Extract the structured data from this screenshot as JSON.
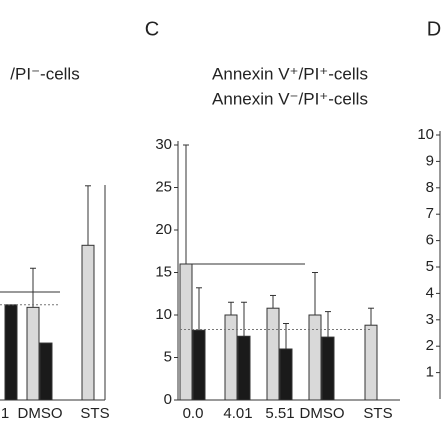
{
  "chart_data": [
    {
      "type": "bar",
      "title": "/PI⁻-cells",
      "categories": [
        "1",
        "DMSO",
        "STS"
      ],
      "series": [
        {
          "color": "#d9d9d9",
          "values": [
            null,
            10.9,
            18.2
          ],
          "errors": [
            null,
            4.6,
            7
          ]
        },
        {
          "color": "#1a1a1a",
          "values": [
            11.2,
            6.7,
            null
          ],
          "errors": [
            null,
            null,
            null
          ]
        }
      ],
      "ylim": [
        0,
        30
      ],
      "hlines": [
        {
          "value": 12.7,
          "style": "solid"
        },
        {
          "value": 11.2,
          "style": "dashed"
        }
      ]
    },
    {
      "type": "bar",
      "panel_label": "C",
      "categories": [
        "0.0",
        "4.01",
        "5.51",
        "DMSO",
        "STS"
      ],
      "series": [
        {
          "name": "Annexin V⁺/PI⁺-cells",
          "color": "#d9d9d9",
          "values": [
            16,
            10,
            10.8,
            10,
            8.8
          ],
          "errors": [
            14,
            1.5,
            1.5,
            5,
            2
          ]
        },
        {
          "name": "Annexin V⁻/PI⁺-cells",
          "color": "#1a1a1a",
          "values": [
            8.2,
            7.5,
            6,
            7.4,
            null
          ],
          "errors": [
            5,
            4,
            3,
            3,
            null
          ]
        }
      ],
      "ylim": [
        0,
        30
      ],
      "yticks": [
        0,
        5,
        10,
        15,
        20,
        25,
        30
      ],
      "hlines": [
        {
          "value": 16,
          "style": "solid"
        },
        {
          "value": 8.3,
          "style": "dashed"
        }
      ]
    },
    {
      "type": "bar",
      "panel_label": "D",
      "ylim": [
        0,
        10
      ],
      "yticks": [
        1,
        2,
        3,
        4,
        5,
        6,
        7,
        8,
        9,
        10
      ]
    }
  ]
}
